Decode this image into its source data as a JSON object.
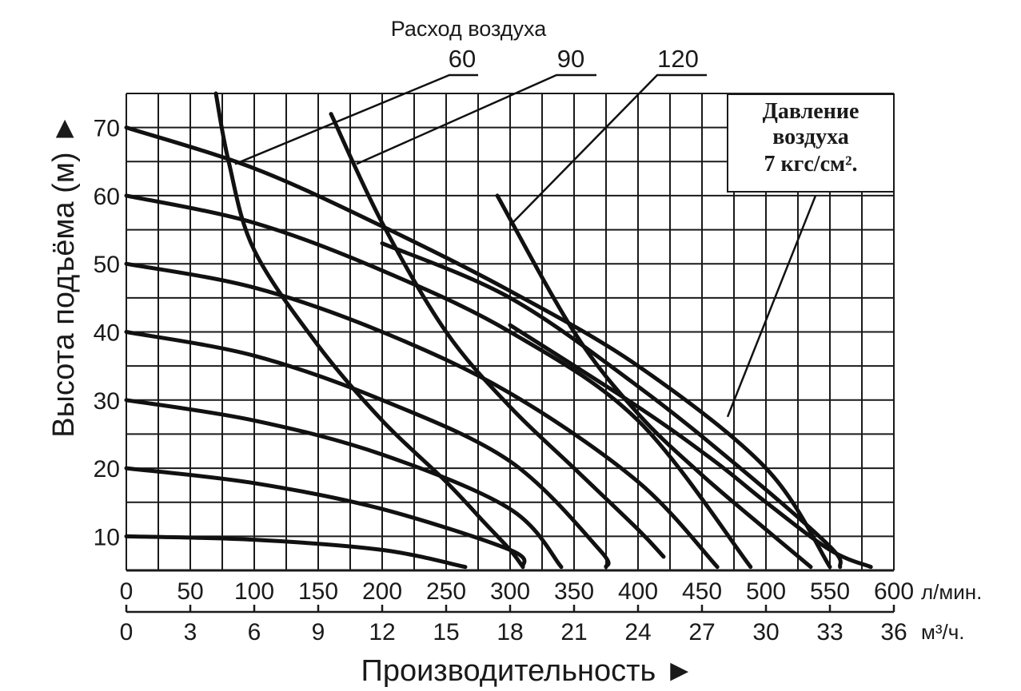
{
  "colors": {
    "line": "#111111",
    "grid": "#1a1a1a",
    "background": "#ffffff"
  },
  "chart_data": {
    "type": "line",
    "title": "",
    "xlabel": "Производительность ►",
    "ylabel": "Высота подъёма (м) ►",
    "xlim": [
      0,
      600
    ],
    "ylim": [
      5,
      75
    ],
    "x_unit": "л/мин.",
    "x2_unit": "м³/ч.",
    "y_ticks": [
      "10",
      "20",
      "30",
      "40",
      "50",
      "60",
      "70"
    ],
    "y_tick_values": [
      10,
      20,
      30,
      40,
      50,
      60,
      70
    ],
    "x_ticks": [
      "0",
      "50",
      "100",
      "150",
      "200",
      "250",
      "300",
      "350",
      "400",
      "450",
      "500",
      "550",
      "600"
    ],
    "x_tick_values": [
      0,
      50,
      100,
      150,
      200,
      250,
      300,
      350,
      400,
      450,
      500,
      550,
      600
    ],
    "x2_ticks": [
      "0",
      "3",
      "6",
      "9",
      "12",
      "15",
      "18",
      "21",
      "24",
      "27",
      "30",
      "33",
      "36"
    ],
    "grid": true,
    "air_flow_title": "Расход воздуха",
    "air_flow_labels": [
      "60",
      "90",
      "120"
    ],
    "pressure_note": [
      "Давление",
      "воздуха",
      "7 кгс/см²."
    ],
    "pressure_curves": [
      {
        "points": [
          [
            0,
            10
          ],
          [
            100,
            9.5
          ],
          [
            200,
            8
          ],
          [
            265,
            5.5
          ]
        ]
      },
      {
        "points": [
          [
            0,
            20
          ],
          [
            100,
            17.8
          ],
          [
            200,
            14
          ],
          [
            300,
            8
          ],
          [
            310,
            5.5
          ]
        ]
      },
      {
        "points": [
          [
            0,
            30
          ],
          [
            100,
            27
          ],
          [
            200,
            22
          ],
          [
            300,
            14
          ],
          [
            340,
            5.5
          ]
        ]
      },
      {
        "points": [
          [
            0,
            40
          ],
          [
            100,
            36.5
          ],
          [
            200,
            30
          ],
          [
            300,
            21
          ],
          [
            370,
            8
          ],
          [
            375,
            5.5
          ]
        ]
      },
      {
        "points": [
          [
            0,
            50
          ],
          [
            100,
            46.5
          ],
          [
            200,
            40
          ],
          [
            300,
            31
          ],
          [
            400,
            18
          ],
          [
            462,
            5.5
          ]
        ]
      },
      {
        "points": [
          [
            0,
            60
          ],
          [
            100,
            56
          ],
          [
            200,
            49
          ],
          [
            300,
            40
          ],
          [
            400,
            27
          ],
          [
            488,
            5.5
          ]
        ]
      },
      {
        "points": [
          [
            0,
            70
          ],
          [
            100,
            64
          ],
          [
            200,
            55.5
          ],
          [
            300,
            46
          ],
          [
            400,
            35
          ],
          [
            500,
            20
          ],
          [
            550,
            5.5
          ]
        ]
      },
      {
        "points": [
          [
            200,
            53
          ],
          [
            300,
            45
          ],
          [
            400,
            32
          ],
          [
            480,
            20
          ],
          [
            550,
            8.5
          ],
          [
            558,
            5.5
          ]
        ]
      },
      {
        "points": [
          [
            300,
            41
          ],
          [
            400,
            29
          ],
          [
            460,
            21
          ],
          [
            500,
            15
          ],
          [
            550,
            8
          ],
          [
            582,
            5.5
          ]
        ]
      }
    ],
    "air_flow_curves": [
      {
        "label": "60",
        "points": [
          [
            70,
            75
          ],
          [
            80,
            65
          ],
          [
            100,
            52
          ],
          [
            150,
            38
          ],
          [
            200,
            27
          ],
          [
            250,
            18
          ],
          [
            280,
            12
          ],
          [
            300,
            8
          ],
          [
            310,
            5.5
          ]
        ]
      },
      {
        "label": "90",
        "points": [
          [
            160,
            72
          ],
          [
            200,
            56
          ],
          [
            250,
            40
          ],
          [
            300,
            29
          ],
          [
            350,
            20
          ],
          [
            400,
            11
          ],
          [
            420,
            7
          ]
        ]
      },
      {
        "label": "120",
        "points": [
          [
            290,
            60
          ],
          [
            350,
            40
          ],
          [
            400,
            28
          ],
          [
            450,
            19
          ],
          [
            500,
            11
          ],
          [
            535,
            5.5
          ]
        ]
      }
    ]
  }
}
